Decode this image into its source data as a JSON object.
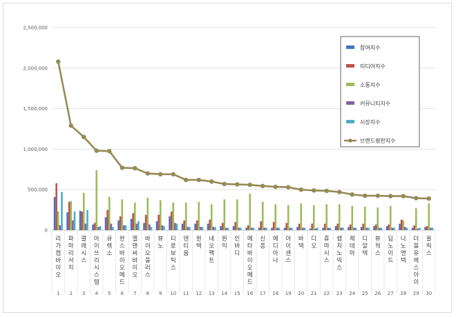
{
  "chart_data": {
    "type": "bar",
    "ylim": [
      0,
      2500000
    ],
    "y_ticks": [
      "0",
      "500,000",
      "1,000,000",
      "1,500,000",
      "2,000,000",
      "2,500,000"
    ],
    "grid": true,
    "legend_position": "top-right",
    "categories": [
      "리가켐바이오",
      "파마리서치",
      "클래시스",
      "아이쓰리시스템",
      "큐렉소",
      "한스바이오메드",
      "엘앤씨바이오",
      "바이오플러스",
      "뷰노",
      "티로보틱스",
      "덴티움",
      "원텍",
      "네오팩트",
      "원익",
      "인바디",
      "메타바이오메드",
      "신흥",
      "메디아나",
      "아이센스",
      "바텍",
      "디오",
      "휴마시스",
      "랩지노믹스",
      "제테마",
      "디알텍",
      "뷰웍스",
      "딥노이드",
      "나노엔텍",
      "더블유에스아이",
      "올릭스"
    ],
    "index_labels": [
      "1",
      "2",
      "3",
      "4",
      "5",
      "6",
      "7",
      "8",
      "9",
      "10",
      "11",
      "12",
      "13",
      "14",
      "15",
      "16",
      "17",
      "18",
      "19",
      "20",
      "21",
      "22",
      "23",
      "24",
      "25",
      "26",
      "27",
      "28",
      "29",
      "30"
    ],
    "series": [
      {
        "name": "참여지수",
        "color": "#4472c4",
        "type": "bar",
        "values": [
          410000,
          220000,
          240000,
          70000,
          160000,
          120000,
          140000,
          90000,
          110000,
          170000,
          80000,
          80000,
          80000,
          50000,
          50000,
          30000,
          30000,
          30000,
          30000,
          40000,
          20000,
          30000,
          50000,
          40000,
          40000,
          50000,
          50000,
          80000,
          30000,
          40000
        ]
      },
      {
        "name": "미디어지수",
        "color": "#c0504d",
        "type": "bar",
        "values": [
          580000,
          350000,
          230000,
          90000,
          250000,
          170000,
          210000,
          190000,
          190000,
          230000,
          120000,
          120000,
          130000,
          90000,
          100000,
          60000,
          110000,
          100000,
          90000,
          80000,
          80000,
          80000,
          80000,
          70000,
          80000,
          70000,
          70000,
          130000,
          60000,
          50000
        ]
      },
      {
        "name": "소통지수",
        "color": "#9bbb59",
        "type": "bar",
        "values": [
          230000,
          360000,
          460000,
          740000,
          410000,
          380000,
          340000,
          400000,
          370000,
          340000,
          340000,
          350000,
          320000,
          380000,
          380000,
          450000,
          350000,
          320000,
          310000,
          330000,
          310000,
          320000,
          320000,
          300000,
          290000,
          280000,
          300000,
          120000,
          270000,
          330000
        ]
      },
      {
        "name": "커뮤니티지수",
        "color": "#8064a2",
        "type": "bar",
        "values": [
          60000,
          120000,
          80000,
          40000,
          80000,
          60000,
          80000,
          70000,
          60000,
          90000,
          40000,
          40000,
          40000,
          30000,
          30000,
          30000,
          30000,
          30000,
          30000,
          30000,
          20000,
          30000,
          30000,
          30000,
          30000,
          30000,
          30000,
          40000,
          20000,
          30000
        ]
      },
      {
        "name": "시장지수",
        "color": "#4bacc6",
        "type": "bar",
        "values": [
          470000,
          230000,
          250000,
          50000,
          40000,
          60000,
          110000,
          40000,
          50000,
          80000,
          40000,
          40000,
          40000,
          30000,
          30000,
          30000,
          30000,
          30000,
          30000,
          30000,
          30000,
          30000,
          30000,
          30000,
          30000,
          30000,
          30000,
          30000,
          30000,
          30000
        ]
      },
      {
        "name": "브랜드평판지수",
        "color": "#948a54",
        "type": "line",
        "values": [
          2080000,
          1290000,
          1150000,
          980000,
          975000,
          770000,
          765000,
          700000,
          690000,
          690000,
          620000,
          620000,
          600000,
          570000,
          565000,
          560000,
          545000,
          535000,
          530000,
          500000,
          490000,
          485000,
          470000,
          440000,
          425000,
          425000,
          420000,
          420000,
          395000,
          390000
        ]
      }
    ]
  }
}
